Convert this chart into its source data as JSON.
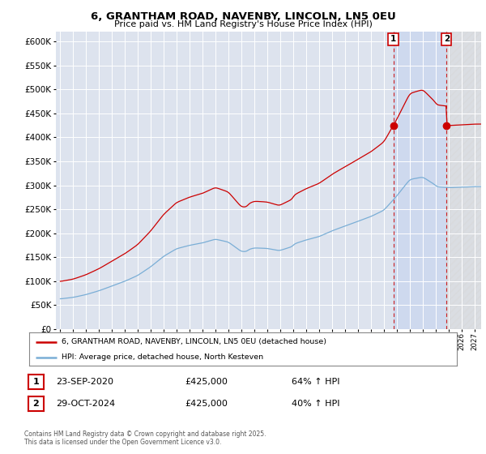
{
  "title": "6, GRANTHAM ROAD, NAVENBY, LINCOLN, LN5 0EU",
  "subtitle": "Price paid vs. HM Land Registry's House Price Index (HPI)",
  "legend_label_red": "6, GRANTHAM ROAD, NAVENBY, LINCOLN, LN5 0EU (detached house)",
  "legend_label_blue": "HPI: Average price, detached house, North Kesteven",
  "annotation1_date": "23-SEP-2020",
  "annotation1_price": "£425,000",
  "annotation1_hpi": "64% ↑ HPI",
  "annotation2_date": "29-OCT-2024",
  "annotation2_price": "£425,000",
  "annotation2_hpi": "40% ↑ HPI",
  "footnote": "Contains HM Land Registry data © Crown copyright and database right 2025.\nThis data is licensed under the Open Government Licence v3.0.",
  "red_color": "#cc0000",
  "blue_color": "#7aaed6",
  "background_chart": "#dde3ee",
  "background_fig": "#ffffff",
  "grid_color": "#ffffff",
  "ylim": [
    0,
    620000
  ],
  "yticks": [
    0,
    50000,
    100000,
    150000,
    200000,
    250000,
    300000,
    350000,
    400000,
    450000,
    500000,
    550000,
    600000
  ],
  "sale1_year": 2020.73,
  "sale2_year": 2024.83,
  "sale1_value": 425000,
  "sale2_value": 425000,
  "shade_between_start": 2020.73,
  "shade_between_end": 2024.83,
  "hatch_start": 2024.83,
  "hatch_end": 2027.5,
  "xlim_left": 1994.7,
  "xlim_right": 2027.5
}
